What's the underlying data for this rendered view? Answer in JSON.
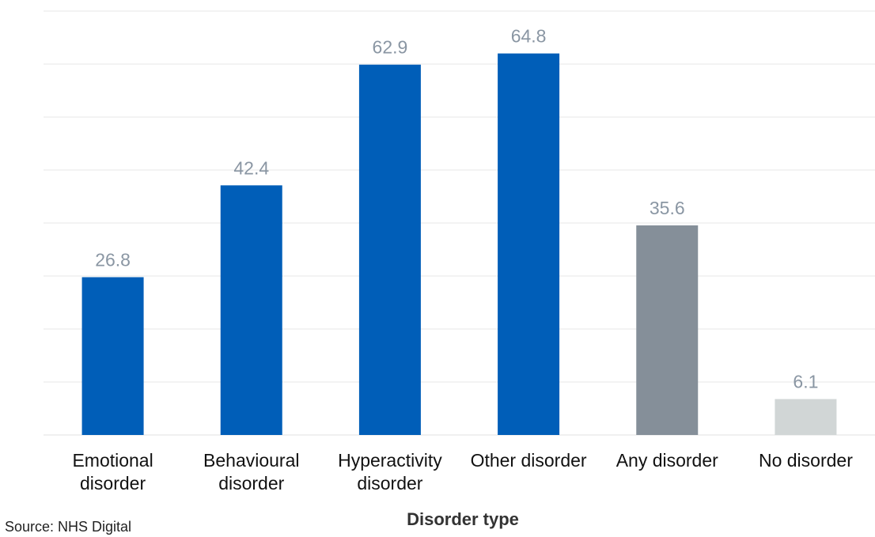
{
  "chart_data": {
    "type": "bar",
    "categories": [
      [
        "Emotional",
        "disorder"
      ],
      [
        "Behavioural",
        "disorder"
      ],
      [
        "Hyperactivity",
        "disorder"
      ],
      [
        "Other disorder"
      ],
      [
        "Any disorder"
      ],
      [
        "No disorder"
      ]
    ],
    "values": [
      26.8,
      42.4,
      62.9,
      64.8,
      35.6,
      6.1
    ],
    "value_labels": [
      "26.8",
      "42.4",
      "62.9",
      "64.8",
      "35.6",
      "6.1"
    ],
    "bar_colors": [
      "#005eb8",
      "#005eb8",
      "#005eb8",
      "#005eb8",
      "#858f99",
      "#d1d6d6"
    ],
    "xlabel": "Disorder type",
    "ylabel": "",
    "ylim": [
      0,
      72
    ],
    "grid": true,
    "source": "Source: NHS Digital"
  }
}
